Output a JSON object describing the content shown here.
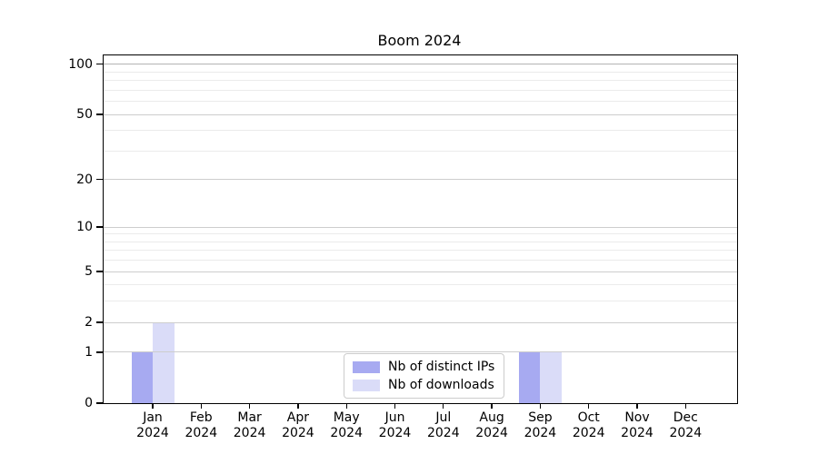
{
  "title": "Boom 2024",
  "colors": {
    "bar_distinct_ips": "#a7aaf1",
    "bar_downloads": "#dadcf8",
    "grid_major": "#cdcdcd",
    "grid_minor": "#ebebeb",
    "grid_top": "#b3b3b3",
    "axis": "#000000",
    "background": "#ffffff"
  },
  "legend": {
    "items": [
      {
        "label": "Nb of distinct IPs",
        "color_key": "bar_distinct_ips"
      },
      {
        "label": "Nb of downloads",
        "color_key": "bar_downloads"
      }
    ]
  },
  "y_axis": {
    "scale": "log10(1+v)",
    "ticks": [
      {
        "value": 0,
        "label": "0"
      },
      {
        "value": 1,
        "label": "1"
      },
      {
        "value": 2,
        "label": "2"
      },
      {
        "value": 5,
        "label": "5"
      },
      {
        "value": 10,
        "label": "10"
      },
      {
        "value": 20,
        "label": "20"
      },
      {
        "value": 50,
        "label": "50"
      },
      {
        "value": 100,
        "label": "100"
      }
    ],
    "minor_tick_values": [
      3,
      4,
      6,
      7,
      8,
      9,
      30,
      40,
      60,
      70,
      80,
      90
    ]
  },
  "x_axis": {
    "labels": [
      {
        "month": "Jan",
        "year": "2024"
      },
      {
        "month": "Feb",
        "year": "2024"
      },
      {
        "month": "Mar",
        "year": "2024"
      },
      {
        "month": "Apr",
        "year": "2024"
      },
      {
        "month": "May",
        "year": "2024"
      },
      {
        "month": "Jun",
        "year": "2024"
      },
      {
        "month": "Jul",
        "year": "2024"
      },
      {
        "month": "Aug",
        "year": "2024"
      },
      {
        "month": "Sep",
        "year": "2024"
      },
      {
        "month": "Oct",
        "year": "2024"
      },
      {
        "month": "Nov",
        "year": "2024"
      },
      {
        "month": "Dec",
        "year": "2024"
      }
    ]
  },
  "chart_data": {
    "type": "bar",
    "title": "Boom 2024",
    "xlabel": "",
    "ylabel": "",
    "categories": [
      "Jan 2024",
      "Feb 2024",
      "Mar 2024",
      "Apr 2024",
      "May 2024",
      "Jun 2024",
      "Jul 2024",
      "Aug 2024",
      "Sep 2024",
      "Oct 2024",
      "Nov 2024",
      "Dec 2024"
    ],
    "series": [
      {
        "name": "Nb of distinct IPs",
        "values": [
          1,
          0,
          0,
          0,
          0,
          0,
          0,
          0,
          1,
          0,
          0,
          0
        ]
      },
      {
        "name": "Nb of downloads",
        "values": [
          2,
          0,
          0,
          0,
          0,
          0,
          0,
          0,
          1,
          0,
          0,
          0
        ]
      }
    ],
    "yscale": "log-like (log10(1+v))",
    "yticks": [
      0,
      1,
      2,
      5,
      10,
      20,
      50,
      100
    ],
    "ylim": [
      0,
      113
    ],
    "grid": true,
    "legend_position": "lower center"
  }
}
